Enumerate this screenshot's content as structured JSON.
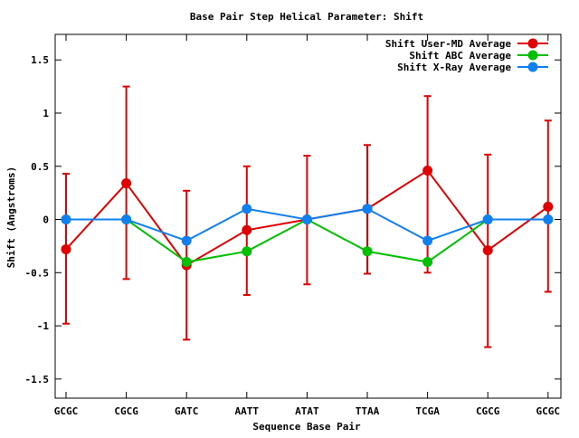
{
  "chart_data": {
    "type": "line",
    "title": "Base Pair Step Helical Parameter: Shift",
    "xlabel": "Sequence Base Pair",
    "ylabel": "Shift (Angstroms)",
    "categories": [
      "GCGC",
      "CGCG",
      "GATC",
      "AATT",
      "ATAT",
      "TTAA",
      "TCGA",
      "CGCG",
      "GCGC"
    ],
    "ylim": [
      -1.68,
      1.74
    ],
    "yticks": [
      -1.5,
      -1,
      -0.5,
      0,
      0.5,
      1,
      1.5
    ],
    "ytick_labels": [
      "-1.5",
      "-1",
      "-0.5",
      "0",
      "0.5",
      "1",
      "1.5"
    ],
    "legend_position": "top-right",
    "grid": false,
    "series": [
      {
        "name": "Shift User-MD Average",
        "color": "#e00000",
        "values": [
          -0.28,
          0.34,
          -0.43,
          -0.1,
          0.0,
          0.1,
          0.46,
          -0.29,
          0.12
        ],
        "error_low": [
          -0.98,
          -0.56,
          -1.13,
          -0.71,
          -0.61,
          -0.51,
          -0.5,
          -1.2,
          -0.68
        ],
        "error_high": [
          0.43,
          1.25,
          0.27,
          0.5,
          0.6,
          0.7,
          1.16,
          0.61,
          0.93
        ]
      },
      {
        "name": "Shift ABC Average",
        "color": "#00c000",
        "values": [
          0.0,
          0.0,
          -0.4,
          -0.3,
          0.0,
          -0.3,
          -0.4,
          0.0,
          0.0
        ]
      },
      {
        "name": "Shift X-Ray Average",
        "color": "#1080f0",
        "values": [
          0.0,
          0.0,
          -0.2,
          0.1,
          0.0,
          0.1,
          -0.2,
          0.0,
          0.0
        ]
      }
    ]
  }
}
